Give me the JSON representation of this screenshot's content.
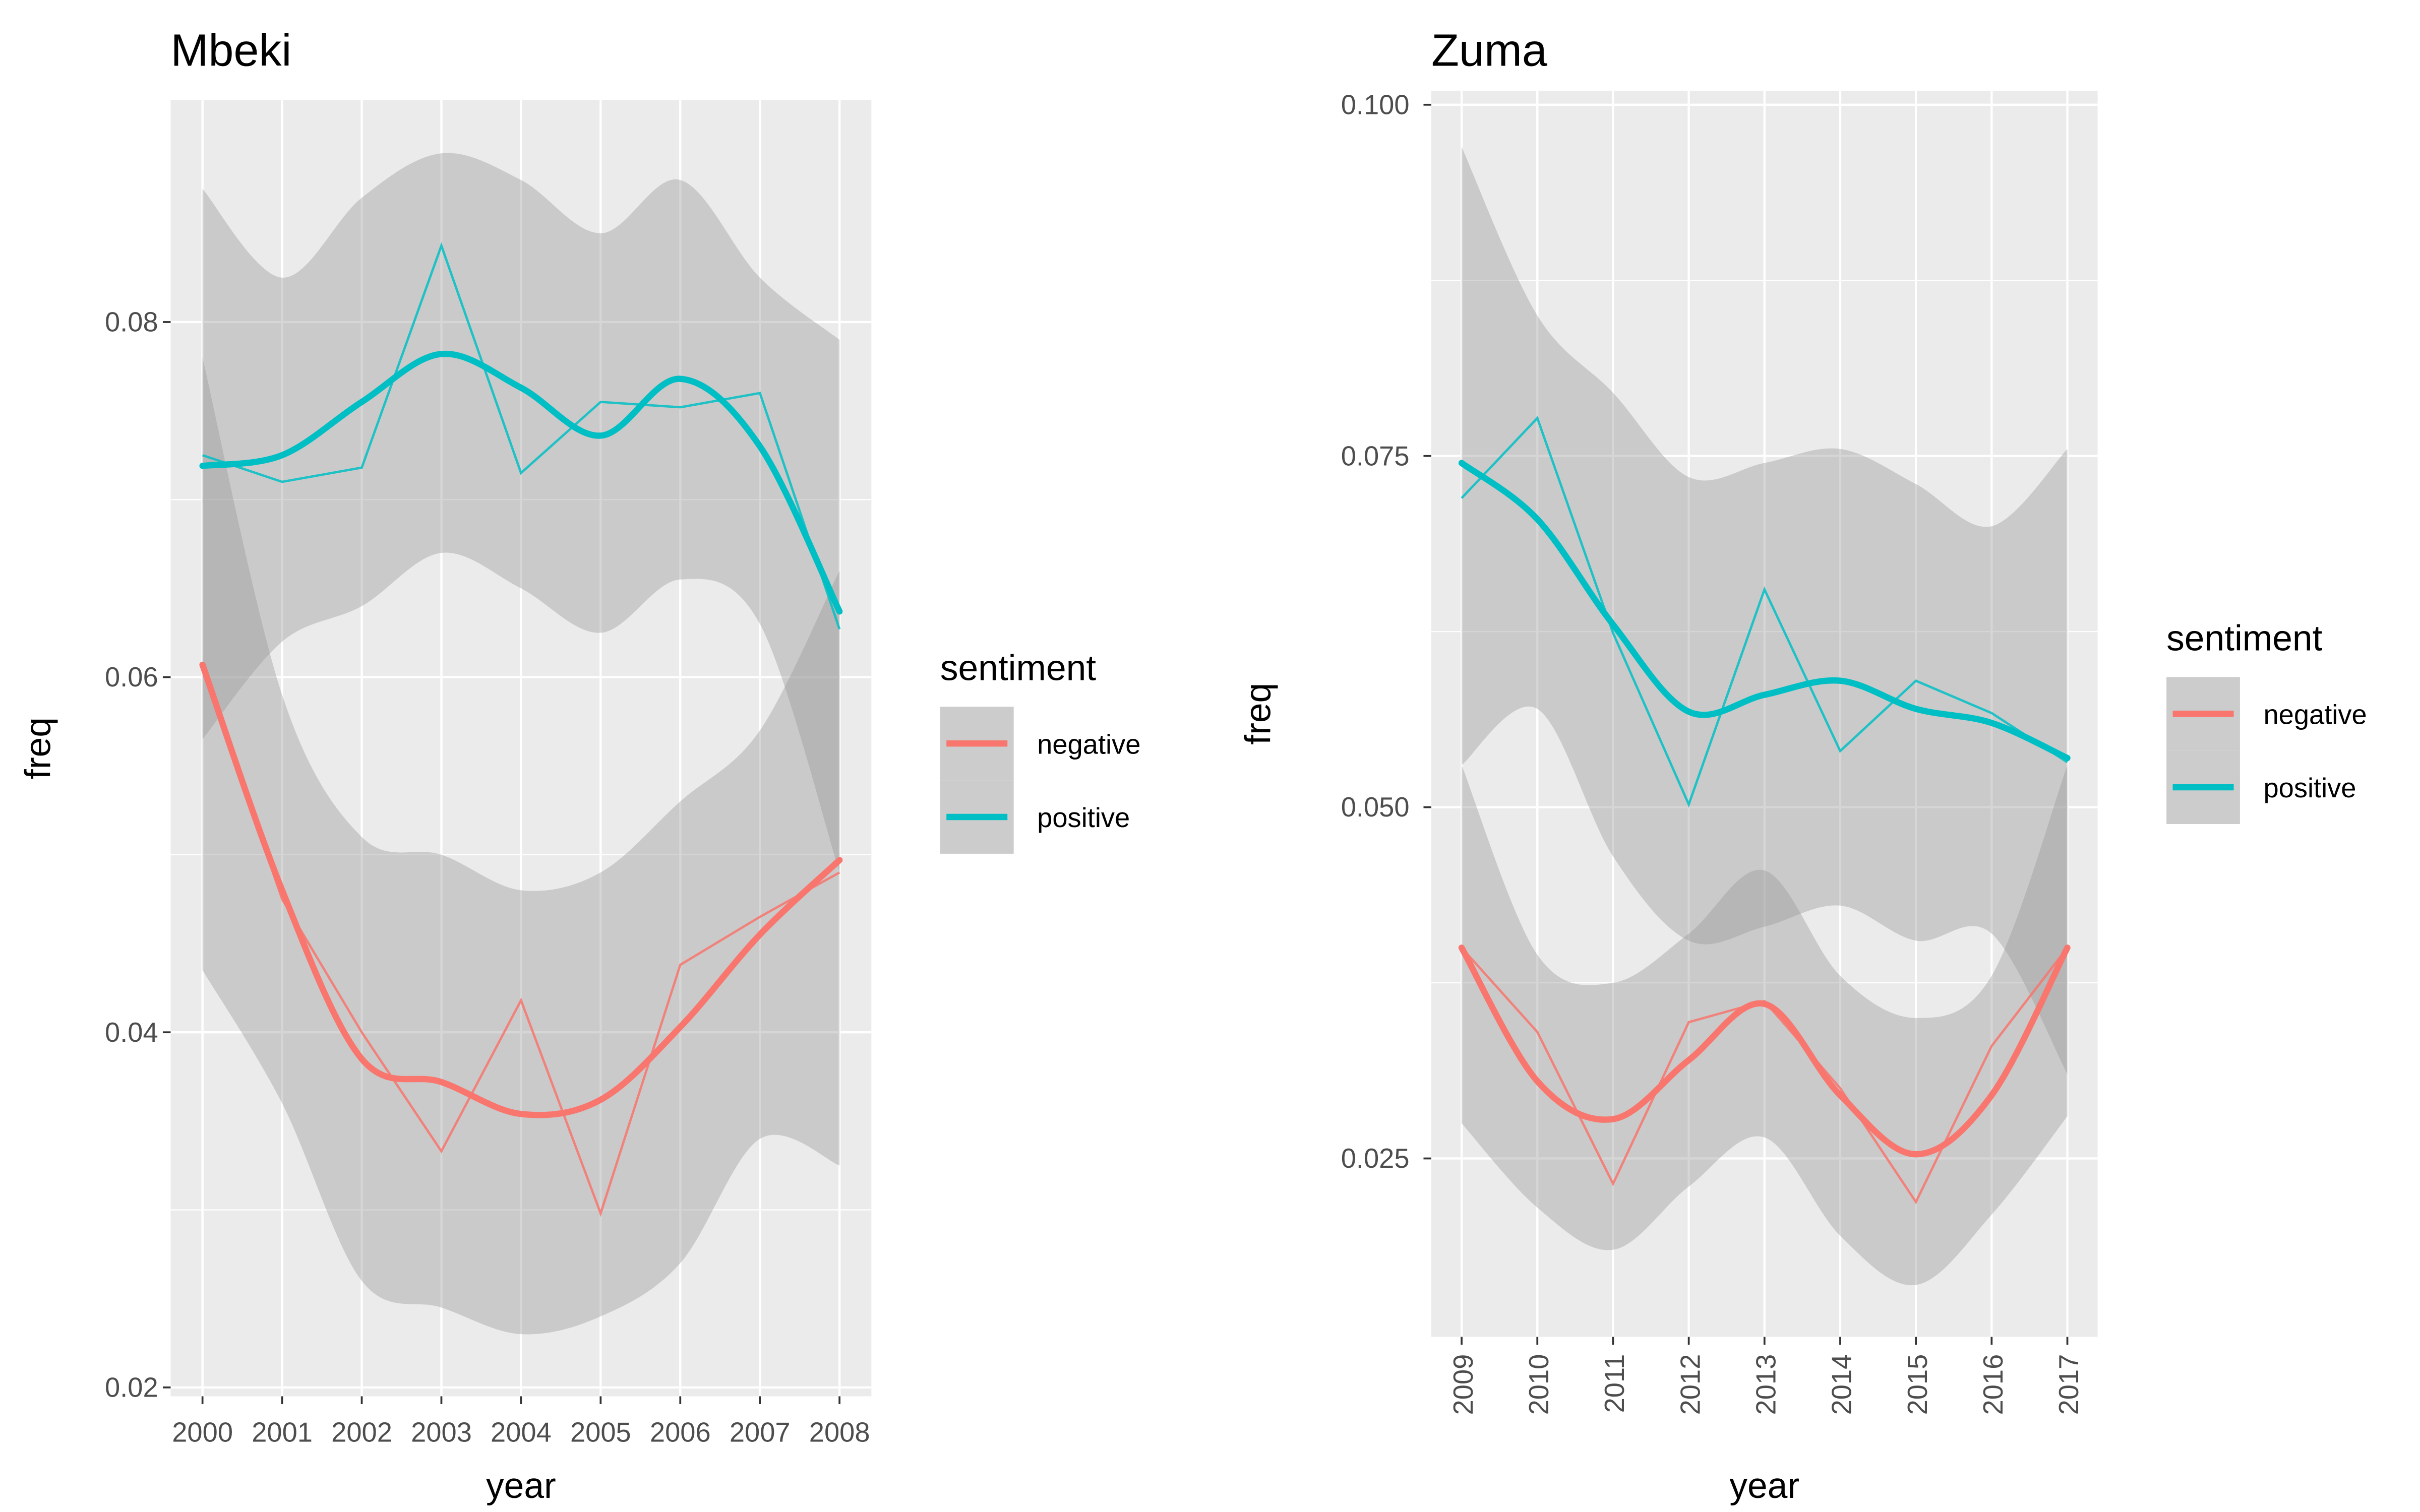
{
  "chart_data": [
    {
      "type": "line",
      "title": "Mbeki",
      "xlabel": "year",
      "ylabel": "freq",
      "x": [
        2000,
        2001,
        2002,
        2003,
        2004,
        2005,
        2006,
        2007,
        2008
      ],
      "xticks": [
        "2000",
        "2001",
        "2002",
        "2003",
        "2004",
        "2005",
        "2006",
        "2007",
        "2008"
      ],
      "yticks": [
        0.02,
        0.04,
        0.06,
        0.08
      ],
      "ytick_labels": [
        "0.02",
        "0.04",
        "0.06",
        "0.08"
      ],
      "ylim": [
        0.0195,
        0.0925
      ],
      "xtick_rotation": 0,
      "legend": {
        "title": "sentiment",
        "position": "right",
        "entries": [
          "negative",
          "positive"
        ]
      },
      "grid": true,
      "series": [
        {
          "name": "negative",
          "color": "#F8766D",
          "values": [
            0.0605,
            0.0475,
            0.04,
            0.0333,
            0.0418,
            0.0298,
            0.0438,
            0.0465,
            0.049
          ],
          "smooth": [
            0.0607,
            0.048,
            0.0385,
            0.0372,
            0.0354,
            0.0362,
            0.0403,
            0.0455,
            0.0497
          ],
          "band_low": [
            0.0435,
            0.036,
            0.026,
            0.0245,
            0.023,
            0.024,
            0.027,
            0.034,
            0.0325
          ],
          "band_high": [
            0.078,
            0.059,
            0.051,
            0.05,
            0.048,
            0.049,
            0.053,
            0.057,
            0.066
          ]
        },
        {
          "name": "positive",
          "color": "#00BFC4",
          "values": [
            0.0725,
            0.071,
            0.0718,
            0.0843,
            0.0715,
            0.0755,
            0.0752,
            0.076,
            0.0627
          ],
          "smooth": [
            0.0719,
            0.0725,
            0.0755,
            0.0782,
            0.0763,
            0.0736,
            0.0768,
            0.073,
            0.0637
          ],
          "band_low": [
            0.0565,
            0.062,
            0.064,
            0.067,
            0.065,
            0.0625,
            0.0655,
            0.063,
            0.049
          ],
          "band_high": [
            0.0875,
            0.0825,
            0.087,
            0.0895,
            0.088,
            0.085,
            0.088,
            0.0825,
            0.079
          ]
        }
      ]
    },
    {
      "type": "line",
      "title": "Zuma",
      "xlabel": "year",
      "ylabel": "freq",
      "x": [
        2009,
        2010,
        2011,
        2012,
        2013,
        2014,
        2015,
        2016,
        2017
      ],
      "xticks": [
        "2009",
        "2010",
        "2011",
        "2012",
        "2013",
        "2014",
        "2015",
        "2016",
        "2017"
      ],
      "yticks": [
        0.025,
        0.05,
        0.075,
        0.1
      ],
      "ytick_labels": [
        "0.025",
        "0.050",
        "0.075",
        "0.100"
      ],
      "ylim": [
        0.0123,
        0.101
      ],
      "xtick_rotation": -90,
      "legend": {
        "title": "sentiment",
        "position": "right",
        "entries": [
          "negative",
          "positive"
        ]
      },
      "grid": true,
      "series": [
        {
          "name": "negative",
          "color": "#F8766D",
          "values": [
            0.04,
            0.034,
            0.0232,
            0.0347,
            0.0362,
            0.03,
            0.0219,
            0.033,
            0.04
          ],
          "smooth": [
            0.04,
            0.0305,
            0.0278,
            0.032,
            0.036,
            0.0295,
            0.0253,
            0.0295,
            0.04
          ],
          "band_low": [
            0.0275,
            0.0215,
            0.0185,
            0.023,
            0.0265,
            0.0195,
            0.016,
            0.021,
            0.028
          ],
          "band_high": [
            0.053,
            0.0395,
            0.0375,
            0.041,
            0.0455,
            0.038,
            0.035,
            0.038,
            0.053
          ]
        },
        {
          "name": "positive",
          "color": "#00BFC4",
          "values": [
            0.072,
            0.0777,
            0.0624,
            0.0502,
            0.0655,
            0.054,
            0.059,
            0.0567,
            0.0532
          ],
          "smooth": [
            0.0745,
            0.0705,
            0.063,
            0.0568,
            0.058,
            0.059,
            0.057,
            0.056,
            0.0535
          ],
          "band_low": [
            0.053,
            0.057,
            0.0465,
            0.0405,
            0.0415,
            0.043,
            0.0405,
            0.041,
            0.031
          ],
          "band_high": [
            0.097,
            0.085,
            0.0795,
            0.0735,
            0.0745,
            0.0755,
            0.073,
            0.07,
            0.0755
          ]
        }
      ]
    }
  ]
}
